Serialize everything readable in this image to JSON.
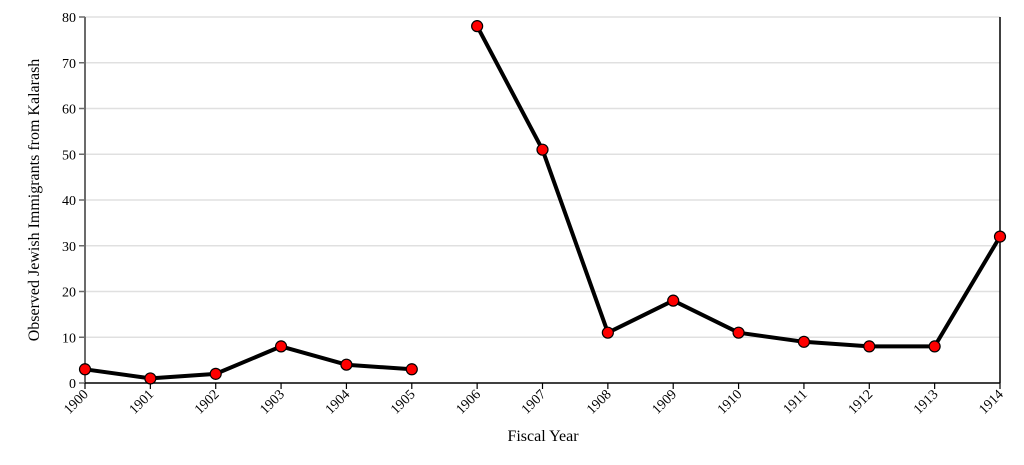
{
  "chart_data": {
    "type": "line",
    "title": "",
    "xlabel": "Fiscal Year",
    "ylabel": "Observed Jewish Immigrants from Kalarash",
    "categories": [
      "1900",
      "1901",
      "1902",
      "1903",
      "1904",
      "1905",
      "1906",
      "1907",
      "1908",
      "1909",
      "1910",
      "1911",
      "1912",
      "1913",
      "1914"
    ],
    "series": [
      {
        "name": "Observed Jewish Immigrants from Kalarash",
        "values": [
          3,
          1,
          2,
          8,
          4,
          3,
          78,
          51,
          11,
          18,
          11,
          9,
          8,
          8,
          32
        ],
        "segments": [
          [
            0,
            5
          ],
          [
            6,
            14
          ]
        ],
        "line_color": "#000000",
        "marker_color": "#ff0000"
      }
    ],
    "ylim": [
      0,
      80
    ],
    "yticks": [
      0,
      10,
      20,
      30,
      40,
      50,
      60,
      70,
      80
    ],
    "grid": true,
    "legend": null
  },
  "axes": {
    "x_title": "Fiscal Year",
    "y_title": "Observed Jewish Immigrants from Kalarash"
  }
}
